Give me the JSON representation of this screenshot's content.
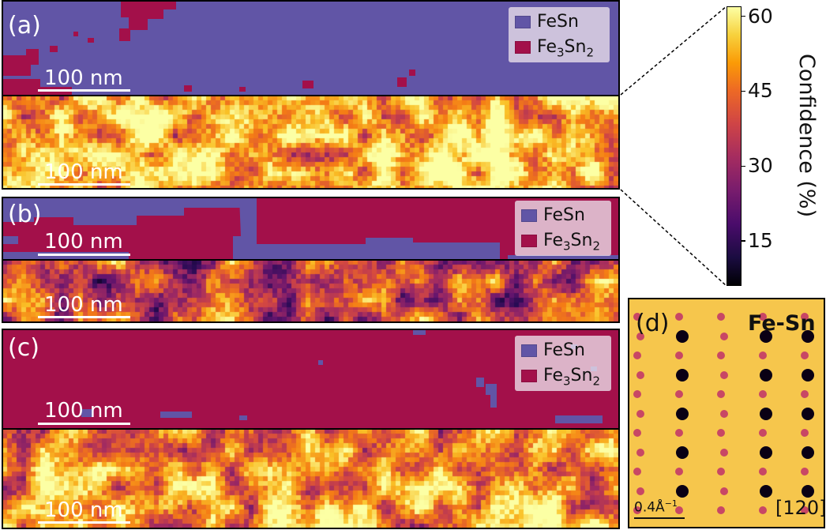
{
  "figure": {
    "panels": [
      {
        "label": "(a)",
        "scale_bar": "100 nm",
        "phase_map": {
          "background_phase": "FeSn"
        }
      },
      {
        "label": "(b)",
        "scale_bar": "100 nm",
        "phase_map": {
          "background_phase": "Fe3Sn2"
        }
      },
      {
        "label": "(c)",
        "scale_bar": "100 nm",
        "phase_map": {
          "background_phase": "Fe3Sn2"
        }
      }
    ],
    "legend": {
      "items": [
        {
          "name": "FeSn",
          "base": "FeSn",
          "sub": "",
          "color": "#6155a6"
        },
        {
          "name": "Fe3Sn2",
          "base": "Fe",
          "sub": "3",
          "mid": "Sn",
          "sub2": "2",
          "color": "#a3104a"
        }
      ]
    },
    "colorbar": {
      "title": "Confidence (%)",
      "colormap": "inferno",
      "ticks": [
        "15",
        "30",
        "45",
        "60"
      ],
      "range": [
        6,
        62
      ]
    },
    "diffraction": {
      "label": "(d)",
      "title": "Fe-Sn",
      "zone_axis": "[120]",
      "scale_bar": {
        "value": "0.4",
        "unit": "Å",
        "exponent": "−1"
      }
    }
  }
}
